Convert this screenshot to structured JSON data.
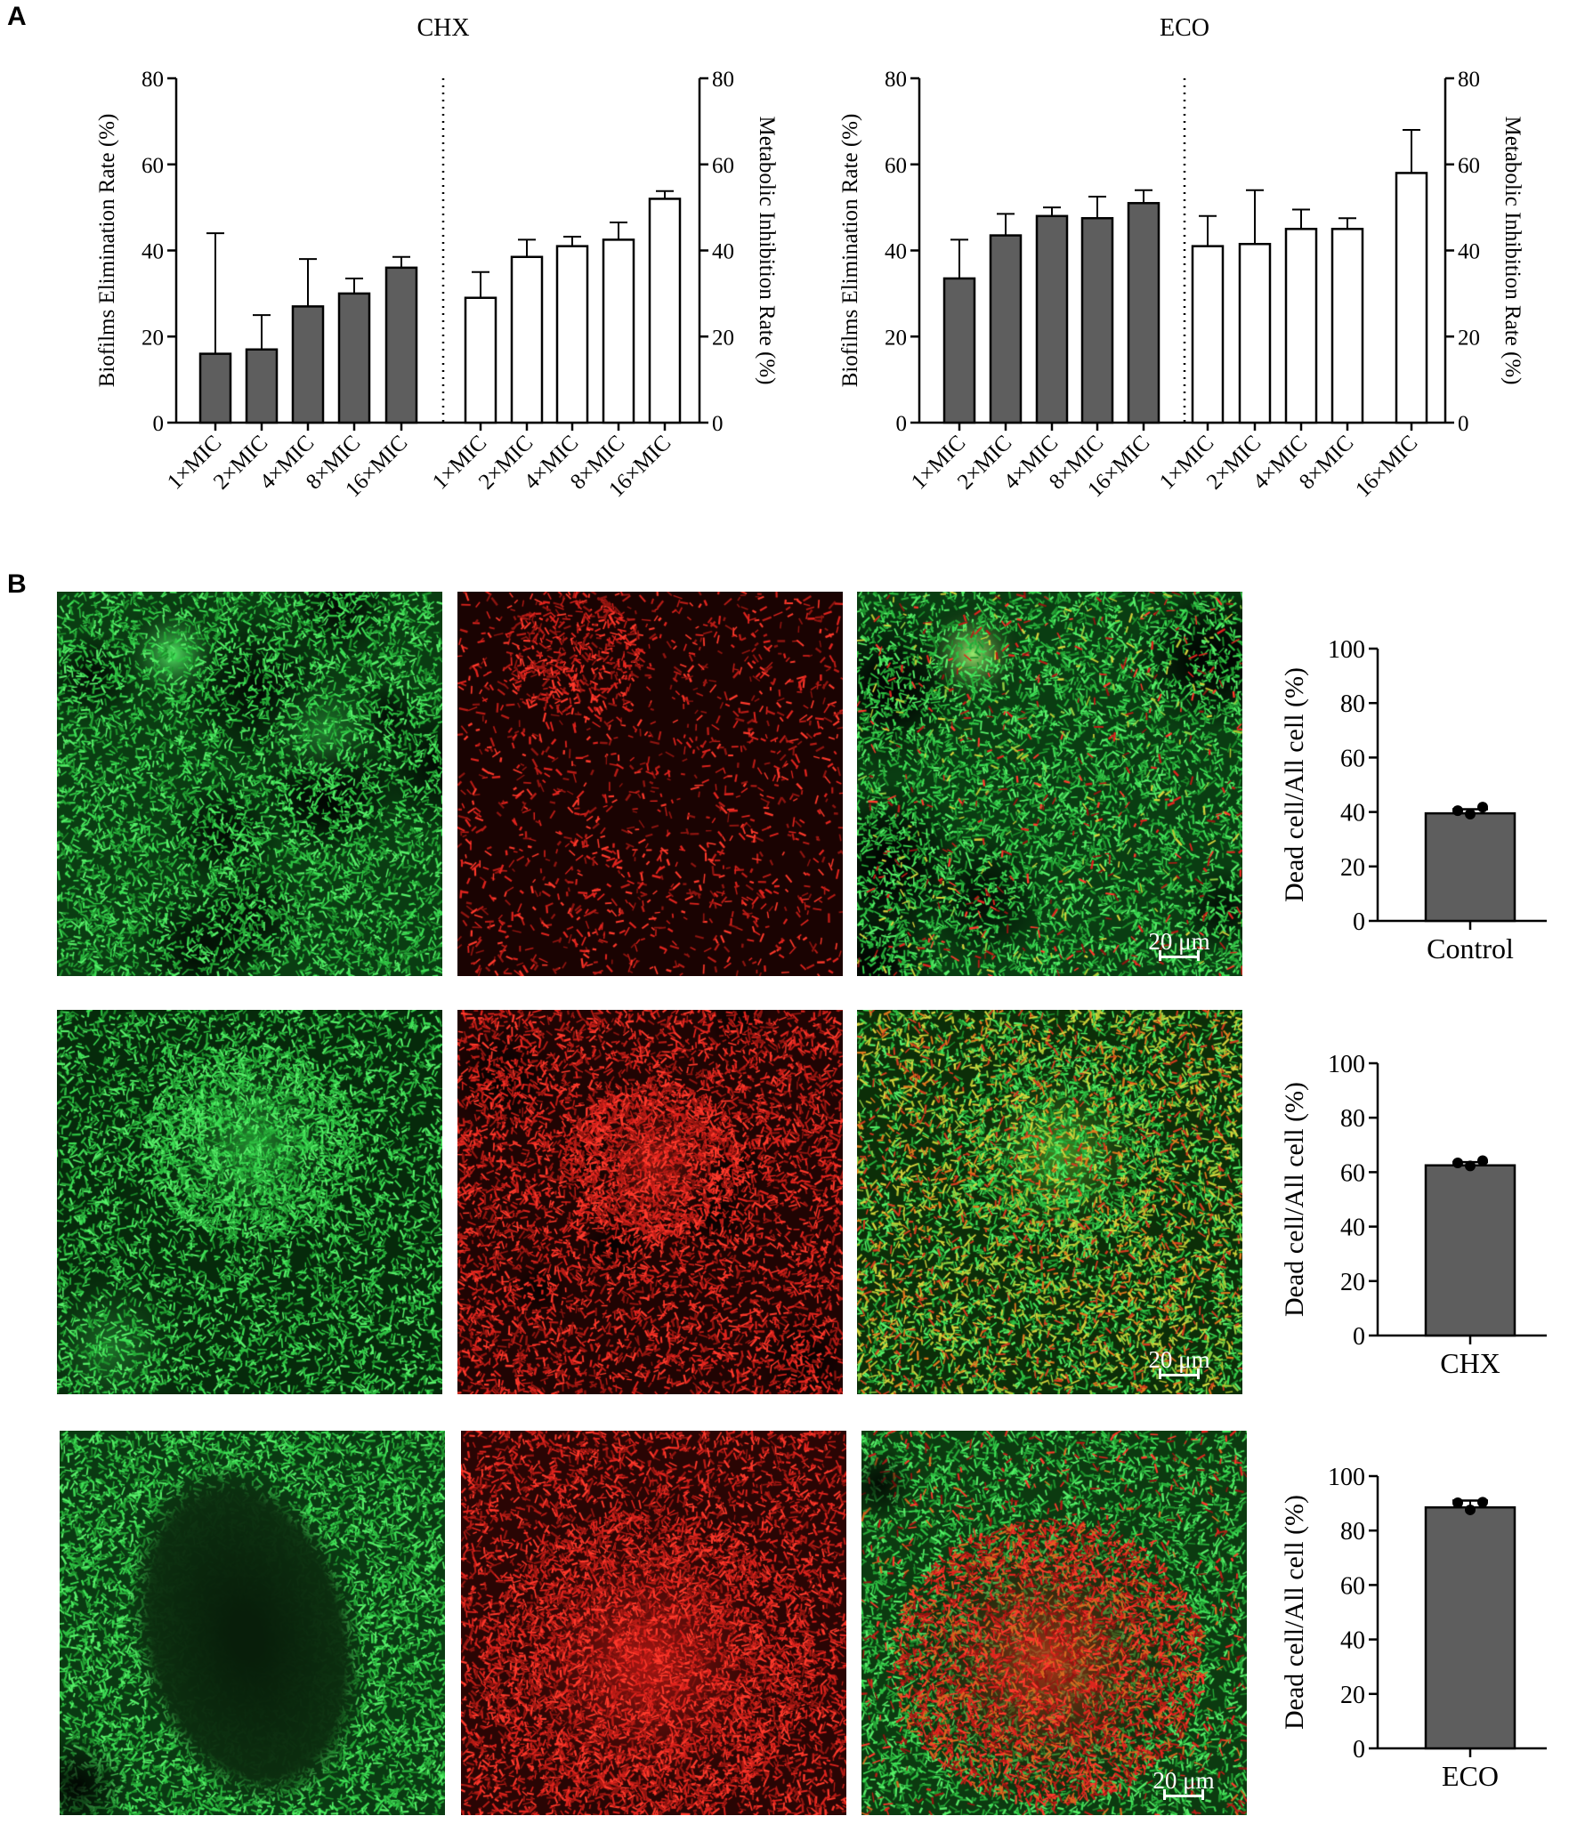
{
  "panel_labels": {
    "a": "A",
    "b": "B"
  },
  "colors": {
    "filled_bar": "#5e5e5e",
    "open_bar": "#ffffff",
    "axis": "#000000",
    "live_stain": "#2fd64a",
    "dead_stain": "#e0241e"
  },
  "chart_data": [
    {
      "id": "chx",
      "type": "bar",
      "title": "CHX",
      "left_axis_label": "Biofilms Elimination  Rate (%)",
      "right_axis_label": "Metabolic Inhibition Rate (%)",
      "ylim": [
        0,
        80
      ],
      "yticks": [
        0,
        20,
        40,
        60,
        80
      ],
      "series": [
        {
          "axis": "left",
          "style": "filled",
          "categories": [
            "1×MIC",
            "2×MIC",
            "4×MIC",
            "8×MIC",
            "16×MIC"
          ],
          "values": [
            16,
            17,
            27,
            30,
            36
          ],
          "errors": [
            28,
            8,
            11,
            3.5,
            2.5
          ]
        },
        {
          "axis": "right",
          "style": "open",
          "categories": [
            "1×MIC",
            "2×MIC",
            "4×MIC",
            "8×MIC",
            "16×MIC"
          ],
          "values": [
            29,
            38.5,
            41,
            42.5,
            52
          ],
          "errors": [
            6,
            4,
            2.2,
            4,
            1.8
          ]
        }
      ]
    },
    {
      "id": "eco",
      "type": "bar",
      "title": "ECO",
      "left_axis_label": "Biofilms Elimination  Rate (%)",
      "right_axis_label": "Metabolic Inhibition Rate (%)",
      "ylim": [
        0,
        80
      ],
      "yticks": [
        0,
        20,
        40,
        60,
        80
      ],
      "series": [
        {
          "axis": "left",
          "style": "filled",
          "categories": [
            "1×MIC",
            "2×MIC",
            "4×MIC",
            "8×MIC",
            "16×MIC"
          ],
          "values": [
            33.5,
            43.5,
            48,
            47.5,
            51
          ],
          "errors": [
            9,
            5,
            2,
            5,
            3
          ]
        },
        {
          "axis": "right",
          "style": "open",
          "categories": [
            "1×MIC",
            "2×MIC",
            "4×MIC",
            "8×MIC",
            "16×MIC"
          ],
          "values": [
            41,
            41.5,
            45,
            45,
            58
          ],
          "errors": [
            7,
            12.5,
            4.5,
            2.5,
            10
          ]
        }
      ]
    },
    {
      "id": "dead-control",
      "type": "bar",
      "ylabel": "Dead cell/All cell (%)",
      "ylim": [
        0,
        100
      ],
      "yticks": [
        0,
        20,
        40,
        60,
        80,
        100
      ],
      "categories": [
        "Control"
      ],
      "values": [
        39.5
      ],
      "errors": [
        1.5
      ],
      "points": [
        40.5,
        39.2,
        41.8
      ]
    },
    {
      "id": "dead-chx",
      "type": "bar",
      "ylabel": "Dead cell/All cell (%)",
      "ylim": [
        0,
        100
      ],
      "yticks": [
        0,
        20,
        40,
        60,
        80,
        100
      ],
      "categories": [
        "CHX"
      ],
      "values": [
        62.5
      ],
      "errors": [
        1.2
      ],
      "points": [
        63.4,
        62.3,
        64.2
      ]
    },
    {
      "id": "dead-eco",
      "type": "bar",
      "ylabel": "Dead cell/All cell (%)",
      "ylim": [
        0,
        100
      ],
      "yticks": [
        0,
        20,
        40,
        60,
        80,
        100
      ],
      "categories": [
        "ECO"
      ],
      "values": [
        88.5
      ],
      "errors": [
        2.5
      ],
      "points": [
        90.2,
        87.6,
        90.4
      ]
    }
  ],
  "micrographs": {
    "scale_bar_label": "20 μm",
    "rows": [
      {
        "group": "Control",
        "channels": [
          "live",
          "dead",
          "merge"
        ]
      },
      {
        "group": "CHX",
        "channels": [
          "live",
          "dead",
          "merge"
        ]
      },
      {
        "group": "ECO",
        "channels": [
          "live",
          "dead",
          "merge"
        ]
      }
    ]
  }
}
